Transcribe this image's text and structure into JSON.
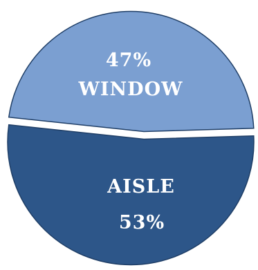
{
  "chart_data": {
    "type": "pie",
    "exploded": true,
    "slices": [
      {
        "name": "WINDOW",
        "value": 47,
        "value_label": "47%",
        "color": "#7b9fd1"
      },
      {
        "name": "AISLE",
        "value": 53,
        "value_label": "53%",
        "color": "#2d5689"
      }
    ],
    "slice_border_color": "#1f3e66",
    "label_color": "#ffffff",
    "title": "",
    "legend": "none"
  }
}
